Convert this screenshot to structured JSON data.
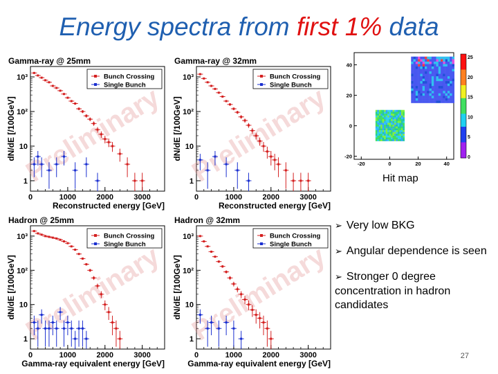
{
  "slide": {
    "title_pre": "Energy spectra from ",
    "title_highlight": "first 1%",
    "title_post": " data",
    "page_number": "27"
  },
  "hitmap": {
    "caption": "Hit map",
    "x_ticks": [
      "-20",
      "0",
      "20",
      "40"
    ],
    "y_ticks": [
      "-20",
      "0",
      "20",
      "40"
    ],
    "colorbar_ticks": [
      "25",
      "20",
      "15",
      "10",
      "5",
      "0"
    ]
  },
  "bullets": [
    "Very low BKG",
    "Angular dependence is seen",
    "Stronger 0 degree concentration in hadron candidates"
  ],
  "chart_data": [
    {
      "type": "scatter",
      "title": "Gamma-ray @ 25mm",
      "xlabel": "Reconstructed energy [GeV]",
      "ylabel": "dN/dE [/100GeV]",
      "xlim": [
        0,
        3600
      ],
      "ylim": [
        0.5,
        2000
      ],
      "yscale": "log",
      "x_ticks": [
        "0",
        "1000",
        "2000",
        "3000"
      ],
      "y_ticks": [
        "1",
        "10",
        "10²",
        "10³"
      ],
      "watermark": "Preliminary",
      "series": [
        {
          "name": "Bunch Crossing",
          "color": "#d42020",
          "x": [
            100,
            200,
            300,
            400,
            500,
            600,
            700,
            800,
            900,
            1000,
            1100,
            1200,
            1300,
            1400,
            1500,
            1600,
            1700,
            1800,
            1900,
            2000,
            2100,
            2200,
            2400,
            2600,
            2800,
            3000
          ],
          "y": [
            1300,
            1100,
            950,
            800,
            700,
            550,
            480,
            400,
            320,
            250,
            200,
            170,
            120,
            100,
            75,
            60,
            45,
            30,
            22,
            16,
            13,
            10,
            6,
            3,
            1,
            1
          ]
        },
        {
          "name": "Single Bunch",
          "color": "#1a2fd0",
          "x": [
            100,
            200,
            300,
            500,
            700,
            900,
            1200,
            1500,
            1800
          ],
          "y": [
            3,
            5,
            3,
            2,
            3,
            5,
            2,
            3,
            1
          ]
        }
      ]
    },
    {
      "type": "scatter",
      "title": "Gamma-ray @ 32mm",
      "xlabel": "Reconstructed energy [GeV]",
      "ylabel": "dN/dE [/100GeV]",
      "xlim": [
        0,
        3600
      ],
      "ylim": [
        0.5,
        2000
      ],
      "yscale": "log",
      "x_ticks": [
        "0",
        "1000",
        "2000",
        "3000"
      ],
      "y_ticks": [
        "1",
        "10",
        "10²",
        "10³"
      ],
      "watermark": "Preliminary",
      "series": [
        {
          "name": "Bunch Crossing",
          "color": "#d42020",
          "x": [
            100,
            200,
            300,
            400,
            500,
            600,
            700,
            800,
            900,
            1000,
            1100,
            1200,
            1300,
            1400,
            1500,
            1600,
            1700,
            1800,
            1900,
            2000,
            2100,
            2200,
            2400,
            2600,
            2800,
            3000
          ],
          "y": [
            1200,
            900,
            700,
            550,
            450,
            350,
            270,
            200,
            160,
            120,
            95,
            70,
            55,
            40,
            28,
            20,
            14,
            10,
            7,
            5,
            4,
            3,
            2,
            1,
            1,
            1
          ]
        },
        {
          "name": "Single Bunch",
          "color": "#1a2fd0",
          "x": [
            100,
            300,
            500,
            800,
            1100,
            1400
          ],
          "y": [
            4,
            2,
            5,
            3,
            2,
            1
          ]
        }
      ]
    },
    {
      "type": "scatter",
      "title": "Hadron @ 25mm",
      "xlabel": "Gamma-ray equivalent energy [GeV]",
      "ylabel": "dN/dE [/100GeV]",
      "xlim": [
        0,
        3600
      ],
      "ylim": [
        0.5,
        2000
      ],
      "yscale": "log",
      "x_ticks": [
        "0",
        "1000",
        "2000",
        "3000"
      ],
      "y_ticks": [
        "1",
        "10",
        "10²",
        "10³"
      ],
      "watermark": "Preliminary",
      "series": [
        {
          "name": "Bunch Crossing",
          "color": "#d42020",
          "x": [
            100,
            200,
            300,
            400,
            500,
            600,
            700,
            800,
            900,
            1000,
            1100,
            1200,
            1300,
            1400,
            1500,
            1600,
            1700,
            1800,
            1900,
            2000,
            2100,
            2200,
            2300,
            2400
          ],
          "y": [
            1400,
            1200,
            1100,
            1000,
            950,
            900,
            850,
            780,
            700,
            620,
            500,
            400,
            300,
            220,
            150,
            100,
            60,
            35,
            20,
            10,
            6,
            3,
            2,
            1
          ]
        },
        {
          "name": "Single Bunch",
          "color": "#1a2fd0",
          "x": [
            100,
            200,
            300,
            400,
            500,
            600,
            700,
            800,
            900,
            1000,
            1100,
            1200,
            1300,
            1400,
            1500
          ],
          "y": [
            3,
            2,
            5,
            2,
            2,
            3,
            2,
            6,
            2,
            3,
            2,
            1,
            2,
            2,
            1
          ]
        }
      ]
    },
    {
      "type": "scatter",
      "title": "Hadron @ 32mm",
      "xlabel": "Gamma-ray equivalent energy [GeV]",
      "ylabel": "dN/dE [/100GeV]",
      "xlim": [
        0,
        3600
      ],
      "ylim": [
        0.5,
        2000
      ],
      "yscale": "log",
      "x_ticks": [
        "0",
        "1000",
        "2000",
        "3000"
      ],
      "y_ticks": [
        "1",
        "10",
        "10²",
        "10³"
      ],
      "watermark": "Preliminary",
      "series": [
        {
          "name": "Bunch Crossing",
          "color": "#d42020",
          "x": [
            100,
            200,
            300,
            400,
            500,
            600,
            700,
            800,
            900,
            1000,
            1100,
            1200,
            1300,
            1400,
            1500,
            1600,
            1700,
            1800,
            1900,
            2000
          ],
          "y": [
            1000,
            700,
            500,
            350,
            250,
            180,
            130,
            90,
            60,
            40,
            28,
            20,
            14,
            10,
            7,
            5,
            4,
            3,
            2,
            1
          ]
        },
        {
          "name": "Single Bunch",
          "color": "#1a2fd0",
          "x": [
            100,
            300,
            400,
            600,
            800,
            1000,
            1200
          ],
          "y": [
            5,
            2,
            3,
            2,
            3,
            2,
            1
          ]
        }
      ]
    }
  ]
}
